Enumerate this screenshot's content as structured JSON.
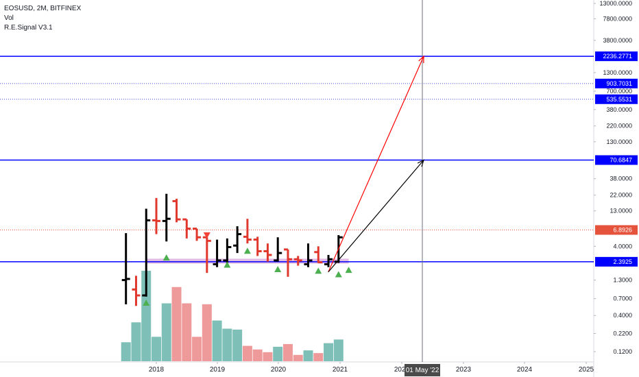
{
  "legend": {
    "symbol_line": "EOSUSD, 2M, BITFINEX",
    "vol_label": "Vol",
    "indicator_label": "R.E.Signal V3.1"
  },
  "colors": {
    "bull_bar": "#000000",
    "bear_bar": "#e0382d",
    "vol_up": "#7ec0b8",
    "vol_down": "#ef9a9a",
    "level_line": "#0000ff",
    "dotted_line": "#3c4cd6",
    "current_price": "#e5533d",
    "arrow_red": "#ff0000",
    "arrow_black": "#000000",
    "signal_up": "#4caf50",
    "signal_down": "#f44336",
    "support_band": "#d8a6d8"
  },
  "chart_data": {
    "type": "ohlc",
    "title": "EOSUSD, 2M, BITFINEX",
    "y_scale": "log",
    "yticks": [
      "13000.0000",
      "7800.0000",
      "3800.0000",
      "1300.0000",
      "700.0000",
      "380.0000",
      "220.0000",
      "130.0000",
      "38.0000",
      "22.0000",
      "13.0000",
      "4.0000",
      "1.3000",
      "0.7000",
      "0.4000",
      "0.2200",
      "0.1200"
    ],
    "xticks": [
      "2018",
      "2019",
      "2020",
      "2021",
      "2022",
      "2023",
      "2024",
      "2025"
    ],
    "crosshair_label": "01 May '22",
    "current_price": "6.8926",
    "horizontal_levels": [
      {
        "value": "2236.2771",
        "style": "solid"
      },
      {
        "value": "903.7031",
        "style": "dotted"
      },
      {
        "value": "535.5531",
        "style": "dotted"
      },
      {
        "value": "70.6847",
        "style": "solid"
      },
      {
        "value": "2.3925",
        "style": "solid"
      }
    ],
    "bars": [
      {
        "date": "2017-07",
        "open": 1.3,
        "high": 6.2,
        "low": 0.58,
        "close": 1.35
      },
      {
        "date": "2017-09",
        "open": 0.95,
        "high": 1.5,
        "low": 0.55,
        "close": 0.78
      },
      {
        "date": "2017-11",
        "open": 0.78,
        "high": 14.0,
        "low": 0.75,
        "close": 9.5
      },
      {
        "date": "2018-01",
        "open": 9.5,
        "high": 20.0,
        "low": 6.0,
        "close": 9.3
      },
      {
        "date": "2018-03",
        "open": 9.3,
        "high": 23.0,
        "low": 4.7,
        "close": 10.0
      },
      {
        "date": "2018-05",
        "open": 18.0,
        "high": 19.5,
        "low": 8.9,
        "close": 9.8
      },
      {
        "date": "2018-07",
        "open": 9.8,
        "high": 9.8,
        "low": 5.2,
        "close": 7.2
      },
      {
        "date": "2018-09",
        "open": 7.2,
        "high": 7.2,
        "low": 4.8,
        "close": 5.4
      },
      {
        "date": "2018-11",
        "open": 5.4,
        "high": 5.4,
        "low": 1.65,
        "close": 4.8
      },
      {
        "date": "2019-01",
        "open": 2.2,
        "high": 5.0,
        "low": 2.0,
        "close": 2.5
      },
      {
        "date": "2019-03",
        "open": 2.5,
        "high": 5.2,
        "low": 2.3,
        "close": 3.9
      },
      {
        "date": "2019-05",
        "open": 4.1,
        "high": 7.8,
        "low": 3.2,
        "close": 6.0
      },
      {
        "date": "2019-07",
        "open": 5.5,
        "high": 10.0,
        "low": 4.4,
        "close": 5.0
      },
      {
        "date": "2019-09",
        "open": 5.0,
        "high": 5.5,
        "low": 2.9,
        "close": 3.4
      },
      {
        "date": "2019-11",
        "open": 3.4,
        "high": 4.4,
        "low": 2.4,
        "close": 3.0
      },
      {
        "date": "2020-01",
        "open": 2.5,
        "high": 5.4,
        "low": 2.4,
        "close": 3.2
      },
      {
        "date": "2020-03",
        "open": 3.6,
        "high": 3.6,
        "low": 1.45,
        "close": 2.6
      },
      {
        "date": "2020-05",
        "open": 2.6,
        "high": 2.9,
        "low": 2.1,
        "close": 2.5
      },
      {
        "date": "2020-07",
        "open": 2.2,
        "high": 4.4,
        "low": 2.0,
        "close": 2.5
      },
      {
        "date": "2020-09",
        "open": 3.3,
        "high": 4.0,
        "low": 2.3,
        "close": 2.35
      },
      {
        "date": "2020-11",
        "open": 2.2,
        "high": 3.0,
        "low": 2.0,
        "close": 2.6
      },
      {
        "date": "2021-01",
        "open": 2.4,
        "high": 5.8,
        "low": 2.3,
        "close": 5.4
      }
    ],
    "volume_relative": [
      {
        "date": "2017-07",
        "value": 0.21,
        "direction": "up"
      },
      {
        "date": "2017-09",
        "value": 0.43,
        "direction": "up"
      },
      {
        "date": "2017-11",
        "value": 1.0,
        "direction": "up"
      },
      {
        "date": "2018-01",
        "value": 0.27,
        "direction": "up"
      },
      {
        "date": "2018-03",
        "value": 0.64,
        "direction": "up"
      },
      {
        "date": "2018-05",
        "value": 0.82,
        "direction": "down"
      },
      {
        "date": "2018-07",
        "value": 0.64,
        "direction": "down"
      },
      {
        "date": "2018-09",
        "value": 0.27,
        "direction": "down"
      },
      {
        "date": "2018-11",
        "value": 0.63,
        "direction": "down"
      },
      {
        "date": "2019-01",
        "value": 0.45,
        "direction": "up"
      },
      {
        "date": "2019-03",
        "value": 0.36,
        "direction": "up"
      },
      {
        "date": "2019-05",
        "value": 0.35,
        "direction": "up"
      },
      {
        "date": "2019-07",
        "value": 0.17,
        "direction": "down"
      },
      {
        "date": "2019-09",
        "value": 0.13,
        "direction": "down"
      },
      {
        "date": "2019-11",
        "value": 0.1,
        "direction": "down"
      },
      {
        "date": "2020-01",
        "value": 0.16,
        "direction": "up"
      },
      {
        "date": "2020-03",
        "value": 0.19,
        "direction": "down"
      },
      {
        "date": "2020-05",
        "value": 0.07,
        "direction": "down"
      },
      {
        "date": "2020-07",
        "value": 0.12,
        "direction": "up"
      },
      {
        "date": "2020-09",
        "value": 0.09,
        "direction": "down"
      },
      {
        "date": "2020-11",
        "value": 0.2,
        "direction": "up"
      },
      {
        "date": "2021-01",
        "value": 0.24,
        "direction": "up"
      }
    ],
    "signals": [
      {
        "date": "2017-11",
        "type": "up",
        "price": 0.62
      },
      {
        "date": "2018-03",
        "type": "up",
        "price": 2.8
      },
      {
        "date": "2018-11",
        "type": "down",
        "price": 5.8
      },
      {
        "date": "2019-03",
        "type": "up",
        "price": 2.2
      },
      {
        "date": "2019-07",
        "type": "up",
        "price": 3.5
      },
      {
        "date": "2020-01",
        "type": "up",
        "price": 1.9
      },
      {
        "date": "2020-09",
        "type": "up",
        "price": 1.8
      },
      {
        "date": "2021-01",
        "type": "up",
        "price": 1.6
      },
      {
        "date": "2021-03",
        "type": "up",
        "price": 1.85
      }
    ],
    "support_band": {
      "from_date": "2017-11",
      "to_date": "2021-03",
      "low": 2.25,
      "high": 2.65
    },
    "projections": [
      {
        "color": "red",
        "from": {
          "date": "2021-01",
          "price": 1.7
        },
        "to": {
          "date": "2022-05",
          "price": 2236.2771
        }
      },
      {
        "color": "black",
        "from": {
          "date": "2021-01",
          "price": 1.7
        },
        "to": {
          "date": "2022-05",
          "price": 70.6847
        }
      }
    ]
  }
}
